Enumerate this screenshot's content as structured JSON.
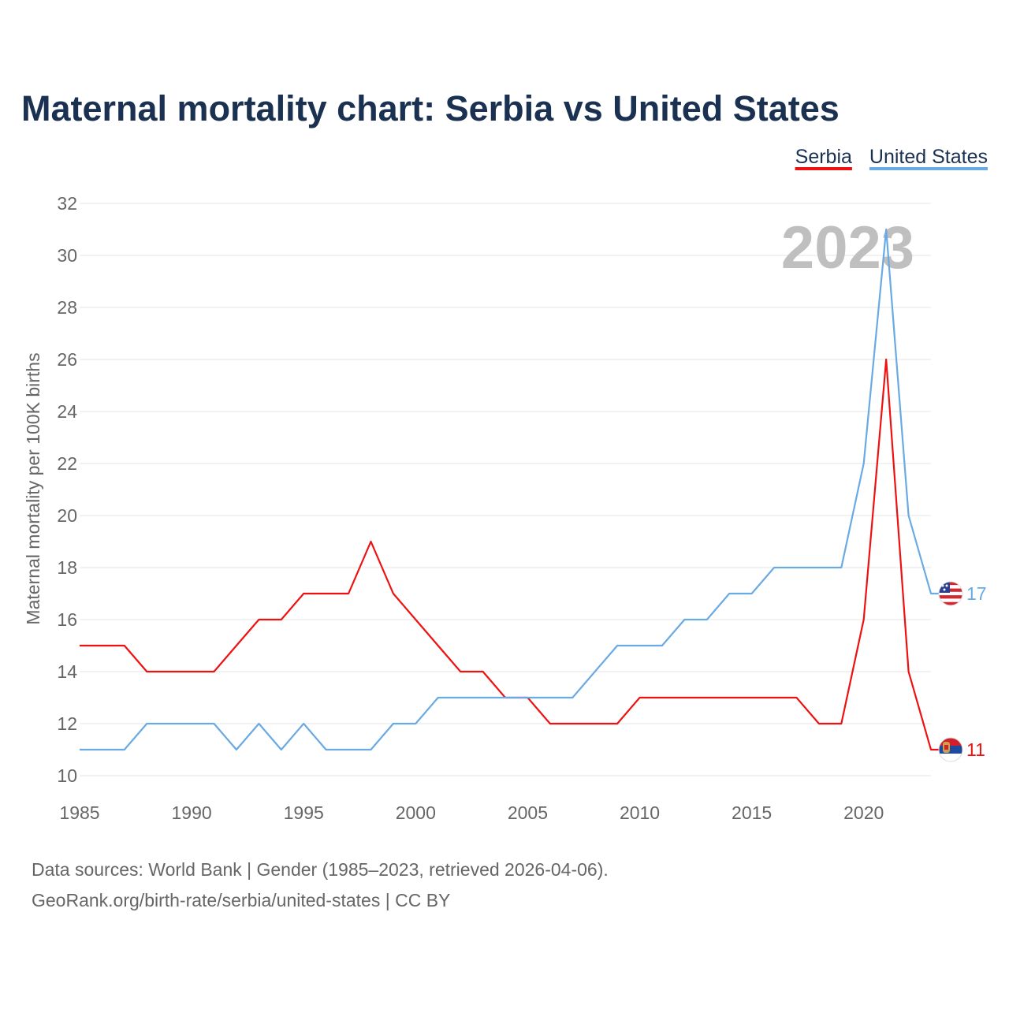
{
  "chart_data": {
    "type": "line",
    "title": "Maternal mortality chart: Serbia vs United States",
    "xlabel": "",
    "ylabel": "Maternal mortality per 100K births",
    "x": [
      1985,
      1986,
      1987,
      1988,
      1989,
      1990,
      1991,
      1992,
      1993,
      1994,
      1995,
      1996,
      1997,
      1998,
      1999,
      2000,
      2001,
      2002,
      2003,
      2004,
      2005,
      2006,
      2007,
      2008,
      2009,
      2010,
      2011,
      2012,
      2013,
      2014,
      2015,
      2016,
      2017,
      2018,
      2019,
      2020,
      2021,
      2022,
      2023
    ],
    "xlim": [
      1985,
      2023
    ],
    "ylim": [
      10,
      32
    ],
    "x_ticks": [
      "1985",
      "1990",
      "1995",
      "2000",
      "2005",
      "2010",
      "2015",
      "2020"
    ],
    "y_ticks": [
      "10",
      "12",
      "14",
      "16",
      "18",
      "20",
      "22",
      "24",
      "26",
      "28",
      "30",
      "32"
    ],
    "grid": true,
    "legend_position": "top-right",
    "year_label": "2023",
    "series": [
      {
        "name": "Serbia",
        "color": "#ee1111",
        "end_label": "11",
        "flag_icon": "serbia-flag-icon",
        "values": [
          15,
          15,
          15,
          14,
          14,
          14,
          14,
          15,
          16,
          16,
          17,
          17,
          17,
          19,
          17,
          16,
          15,
          14,
          14,
          13,
          13,
          12,
          12,
          12,
          12,
          13,
          13,
          13,
          13,
          13,
          13,
          13,
          13,
          12,
          12,
          16,
          26,
          14,
          11
        ]
      },
      {
        "name": "United States",
        "color": "#6aaae4",
        "end_label": "17",
        "flag_icon": "usa-flag-icon",
        "values": [
          11,
          11,
          11,
          12,
          12,
          12,
          12,
          11,
          12,
          11,
          12,
          11,
          11,
          11,
          12,
          12,
          13,
          13,
          13,
          13,
          13,
          13,
          13,
          14,
          15,
          15,
          15,
          16,
          16,
          17,
          17,
          18,
          18,
          18,
          18,
          22,
          31,
          20,
          17
        ]
      }
    ]
  },
  "footer": {
    "source_line": "Data sources: World Bank | Gender (1985–2023, retrieved 2026-04-06).",
    "credit_line": "GeoRank.org/birth-rate/serbia/united-states | CC BY"
  },
  "colors": {
    "title": "#1b3152",
    "axis_text": "#666666",
    "grid": "#e6e6e6",
    "watermark": "#bfbfbf"
  }
}
